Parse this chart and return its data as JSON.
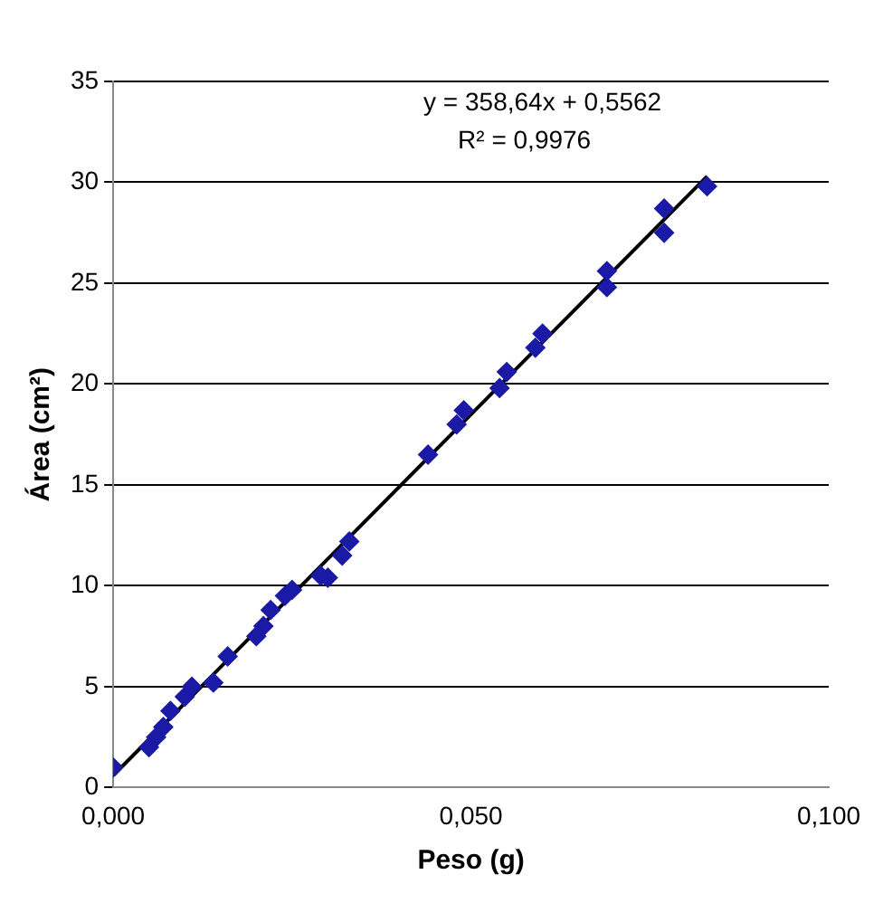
{
  "chart_data": {
    "type": "scatter",
    "xlabel": "Peso (g)",
    "ylabel": "Área (cm²)",
    "annotations": [
      "y = 358,64x + 0,5562",
      "R² = 0,9976"
    ],
    "xlim": [
      0,
      0.1
    ],
    "xticks": [
      {
        "value": 0,
        "label": "0,000"
      },
      {
        "value": 0.05,
        "label": "0,050"
      },
      {
        "value": 0.1,
        "label": "0,100"
      }
    ],
    "ylim": [
      0,
      35
    ],
    "yticks": [
      0,
      5,
      10,
      15,
      20,
      25,
      30,
      35
    ],
    "grid": "y",
    "series": [
      {
        "type": "scatter",
        "marker": "diamond",
        "color": "#1a1aa6",
        "x": [
          0,
          0.005,
          0.006,
          0.007,
          0.008,
          0.01,
          0.011,
          0.014,
          0.016,
          0.02,
          0.021,
          0.022,
          0.024,
          0.025,
          0.029,
          0.03,
          0.032,
          0.033,
          0.044,
          0.048,
          0.049,
          0.054,
          0.055,
          0.059,
          0.06,
          0.069,
          0.069,
          0.077,
          0.077,
          0.083
        ],
        "values": [
          1,
          2,
          2.5,
          3,
          3.8,
          4.5,
          5,
          5.2,
          6.5,
          7.5,
          8,
          8.8,
          9.5,
          9.8,
          10.5,
          10.4,
          11.5,
          12.2,
          16.5,
          18,
          18.7,
          19.8,
          20.6,
          21.8,
          22.5,
          24.8,
          25.6,
          27.5,
          28.7,
          29.8
        ]
      },
      {
        "type": "line",
        "marker": "none",
        "color": "#000000",
        "x": [
          0,
          0.083
        ],
        "values": [
          0.6,
          30.3
        ]
      }
    ]
  }
}
